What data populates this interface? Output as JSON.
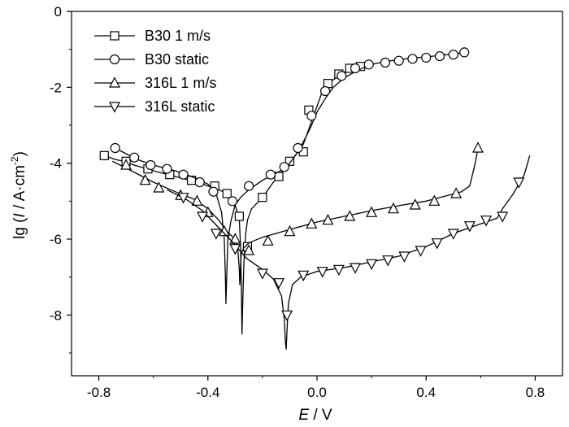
{
  "chart_data": {
    "type": "line",
    "title": "",
    "xlabel_italic": "E",
    "xlabel_rest": " / V",
    "ylabel_prefix": "lg (",
    "ylabel_italic": "I",
    "ylabel_rest": " / A·cm",
    "ylabel_sup": "-2",
    "ylabel_suffix": ")",
    "xlim": [
      -0.9,
      0.9
    ],
    "ylim": [
      -9.6,
      0
    ],
    "xticks": [
      -0.8,
      -0.4,
      0.0,
      0.4,
      0.8
    ],
    "xtick_labels": [
      "-0.8",
      "-0.4",
      "0.0",
      "0.4",
      "0.8"
    ],
    "yticks": [
      0,
      -2,
      -4,
      -6,
      -8
    ],
    "ytick_labels": [
      "0",
      "-2",
      "-4",
      "-6",
      "-8"
    ],
    "grid": false,
    "legend_position": "top-left",
    "series": [
      {
        "name": "B30 1 m/s",
        "marker": "square",
        "line": [
          [
            -0.78,
            -3.8
          ],
          [
            -0.74,
            -3.9
          ],
          [
            -0.71,
            -3.95
          ],
          [
            -0.67,
            -4.05
          ],
          [
            -0.6,
            -4.2
          ],
          [
            -0.52,
            -4.35
          ],
          [
            -0.44,
            -4.5
          ],
          [
            -0.36,
            -4.7
          ],
          [
            -0.33,
            -4.8
          ],
          [
            -0.3,
            -5.1
          ],
          [
            -0.285,
            -5.5
          ],
          [
            -0.28,
            -6.2
          ],
          [
            -0.277,
            -7.5
          ],
          [
            -0.275,
            -8.5
          ],
          [
            -0.272,
            -7.6
          ],
          [
            -0.268,
            -6.6
          ],
          [
            -0.262,
            -5.9
          ],
          [
            -0.255,
            -5.5
          ],
          [
            -0.24,
            -5.2
          ],
          [
            -0.2,
            -4.9
          ],
          [
            -0.15,
            -4.4
          ],
          [
            -0.1,
            -4.0
          ],
          [
            -0.05,
            -3.5
          ],
          [
            -0.02,
            -2.9
          ],
          [
            0.0,
            -2.5
          ],
          [
            0.02,
            -2.1
          ],
          [
            0.05,
            -1.85
          ],
          [
            0.1,
            -1.6
          ],
          [
            0.14,
            -1.45
          ],
          [
            0.18,
            -1.4
          ]
        ],
        "markers": [
          [
            -0.78,
            -3.8
          ],
          [
            -0.7,
            -3.95
          ],
          [
            -0.62,
            -4.15
          ],
          [
            -0.54,
            -4.3
          ],
          [
            -0.46,
            -4.45
          ],
          [
            -0.375,
            -4.6
          ],
          [
            -0.33,
            -4.8
          ],
          [
            -0.285,
            -5.4
          ],
          [
            -0.255,
            -6.2
          ],
          [
            -0.2,
            -4.9
          ],
          [
            -0.14,
            -4.35
          ],
          [
            -0.1,
            -3.95
          ],
          [
            -0.05,
            -3.7
          ],
          [
            -0.03,
            -2.6
          ],
          [
            0.04,
            -1.9
          ],
          [
            0.08,
            -1.65
          ],
          [
            0.12,
            -1.5
          ],
          [
            0.16,
            -1.45
          ]
        ]
      },
      {
        "name": "B30 static",
        "marker": "circle",
        "line": [
          [
            -0.74,
            -3.6
          ],
          [
            -0.7,
            -3.75
          ],
          [
            -0.66,
            -3.9
          ],
          [
            -0.6,
            -4.05
          ],
          [
            -0.52,
            -4.2
          ],
          [
            -0.46,
            -4.35
          ],
          [
            -0.4,
            -4.55
          ],
          [
            -0.37,
            -4.8
          ],
          [
            -0.35,
            -5.3
          ],
          [
            -0.34,
            -6.0
          ],
          [
            -0.336,
            -7.0
          ],
          [
            -0.334,
            -7.7
          ],
          [
            -0.331,
            -7.0
          ],
          [
            -0.327,
            -6.0
          ],
          [
            -0.315,
            -5.5
          ],
          [
            -0.3,
            -5.1
          ],
          [
            -0.28,
            -4.9
          ],
          [
            -0.25,
            -4.7
          ],
          [
            -0.2,
            -4.45
          ],
          [
            -0.16,
            -4.3
          ],
          [
            -0.12,
            -4.15
          ],
          [
            -0.1,
            -4.0
          ],
          [
            -0.07,
            -3.7
          ],
          [
            -0.04,
            -3.3
          ],
          [
            -0.02,
            -3.0
          ],
          [
            0.0,
            -2.65
          ],
          [
            0.03,
            -2.3
          ],
          [
            0.06,
            -2.0
          ],
          [
            0.1,
            -1.75
          ],
          [
            0.15,
            -1.55
          ],
          [
            0.2,
            -1.4
          ],
          [
            0.25,
            -1.32
          ],
          [
            0.3,
            -1.27
          ],
          [
            0.35,
            -1.23
          ],
          [
            0.4,
            -1.2
          ],
          [
            0.45,
            -1.16
          ],
          [
            0.5,
            -1.12
          ],
          [
            0.55,
            -1.08
          ]
        ],
        "markers": [
          [
            -0.74,
            -3.6
          ],
          [
            -0.67,
            -3.85
          ],
          [
            -0.61,
            -4.05
          ],
          [
            -0.55,
            -4.15
          ],
          [
            -0.49,
            -4.3
          ],
          [
            -0.43,
            -4.5
          ],
          [
            -0.38,
            -4.75
          ],
          [
            -0.31,
            -5.0
          ],
          [
            -0.25,
            -4.6
          ],
          [
            -0.17,
            -4.3
          ],
          [
            -0.12,
            -4.1
          ],
          [
            -0.07,
            -3.6
          ],
          [
            -0.02,
            -2.75
          ],
          [
            0.03,
            -2.1
          ],
          [
            0.09,
            -1.7
          ],
          [
            0.14,
            -1.5
          ],
          [
            0.19,
            -1.4
          ],
          [
            0.25,
            -1.35
          ],
          [
            0.3,
            -1.3
          ],
          [
            0.35,
            -1.25
          ],
          [
            0.4,
            -1.22
          ],
          [
            0.45,
            -1.18
          ],
          [
            0.5,
            -1.14
          ],
          [
            0.54,
            -1.08
          ]
        ]
      },
      {
        "name": "316L 1 m/s",
        "marker": "triangle-up",
        "line": [
          [
            -0.75,
            -3.95
          ],
          [
            -0.68,
            -4.2
          ],
          [
            -0.6,
            -4.5
          ],
          [
            -0.52,
            -4.75
          ],
          [
            -0.45,
            -4.95
          ],
          [
            -0.4,
            -5.2
          ],
          [
            -0.36,
            -5.5
          ],
          [
            -0.33,
            -5.8
          ],
          [
            -0.3,
            -6.0
          ],
          [
            -0.29,
            -6.3
          ],
          [
            -0.285,
            -6.8
          ],
          [
            -0.283,
            -7.2
          ],
          [
            -0.281,
            -6.8
          ],
          [
            -0.278,
            -6.4
          ],
          [
            -0.27,
            -6.25
          ],
          [
            -0.25,
            -6.1
          ],
          [
            -0.2,
            -5.95
          ],
          [
            -0.1,
            -5.75
          ],
          [
            0.0,
            -5.55
          ],
          [
            0.1,
            -5.4
          ],
          [
            0.2,
            -5.25
          ],
          [
            0.3,
            -5.12
          ],
          [
            0.4,
            -5.0
          ],
          [
            0.48,
            -4.85
          ],
          [
            0.53,
            -4.75
          ],
          [
            0.56,
            -4.6
          ],
          [
            0.58,
            -4.0
          ],
          [
            0.59,
            -3.6
          ]
        ],
        "markers": [
          [
            -0.7,
            -4.05
          ],
          [
            -0.63,
            -4.45
          ],
          [
            -0.58,
            -4.65
          ],
          [
            -0.5,
            -4.85
          ],
          [
            -0.44,
            -5.0
          ],
          [
            -0.4,
            -5.3
          ],
          [
            -0.34,
            -5.8
          ],
          [
            -0.3,
            -6.0
          ],
          [
            -0.25,
            -6.3
          ],
          [
            -0.18,
            -6.05
          ],
          [
            -0.1,
            -5.8
          ],
          [
            -0.02,
            -5.6
          ],
          [
            0.04,
            -5.5
          ],
          [
            0.12,
            -5.4
          ],
          [
            0.2,
            -5.3
          ],
          [
            0.28,
            -5.2
          ],
          [
            0.36,
            -5.1
          ],
          [
            0.43,
            -5.0
          ],
          [
            0.51,
            -4.8
          ],
          [
            0.59,
            -3.6
          ]
        ]
      },
      {
        "name": "316L static",
        "marker": "triangle-down",
        "line": [
          [
            -0.55,
            -4.7
          ],
          [
            -0.48,
            -4.95
          ],
          [
            -0.42,
            -5.25
          ],
          [
            -0.38,
            -5.55
          ],
          [
            -0.34,
            -5.85
          ],
          [
            -0.3,
            -6.15
          ],
          [
            -0.26,
            -6.5
          ],
          [
            -0.2,
            -6.8
          ],
          [
            -0.16,
            -7.05
          ],
          [
            -0.13,
            -7.5
          ],
          [
            -0.12,
            -8.1
          ],
          [
            -0.116,
            -8.7
          ],
          [
            -0.113,
            -8.9
          ],
          [
            -0.11,
            -8.4
          ],
          [
            -0.105,
            -7.7
          ],
          [
            -0.09,
            -7.2
          ],
          [
            -0.06,
            -7.0
          ],
          [
            0.0,
            -6.85
          ],
          [
            0.1,
            -6.75
          ],
          [
            0.2,
            -6.6
          ],
          [
            0.3,
            -6.45
          ],
          [
            0.4,
            -6.2
          ],
          [
            0.5,
            -5.85
          ],
          [
            0.6,
            -5.6
          ],
          [
            0.66,
            -5.45
          ],
          [
            0.68,
            -5.2
          ],
          [
            0.72,
            -4.8
          ],
          [
            0.76,
            -4.3
          ],
          [
            0.78,
            -3.8
          ]
        ],
        "markers": [
          [
            -0.49,
            -4.9
          ],
          [
            -0.42,
            -5.4
          ],
          [
            -0.37,
            -5.85
          ],
          [
            -0.3,
            -6.25
          ],
          [
            -0.2,
            -6.9
          ],
          [
            -0.14,
            -7.15
          ],
          [
            -0.11,
            -8.0
          ],
          [
            -0.05,
            -6.95
          ],
          [
            0.02,
            -6.85
          ],
          [
            0.08,
            -6.8
          ],
          [
            0.14,
            -6.75
          ],
          [
            0.2,
            -6.65
          ],
          [
            0.26,
            -6.55
          ],
          [
            0.32,
            -6.45
          ],
          [
            0.38,
            -6.3
          ],
          [
            0.44,
            -6.1
          ],
          [
            0.5,
            -5.85
          ],
          [
            0.56,
            -5.65
          ],
          [
            0.62,
            -5.5
          ],
          [
            0.68,
            -5.4
          ],
          [
            0.74,
            -4.5
          ]
        ]
      }
    ]
  }
}
